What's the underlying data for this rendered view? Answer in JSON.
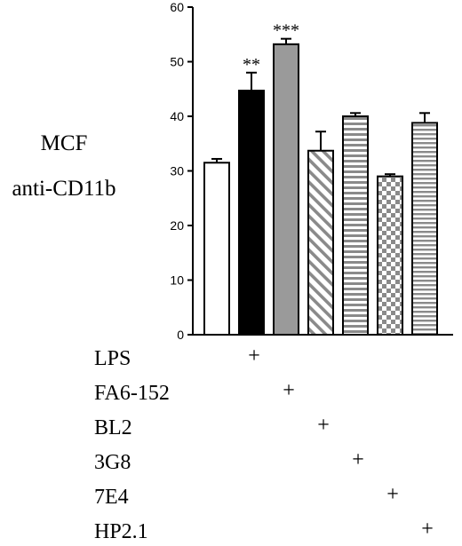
{
  "chart_data": {
    "type": "bar",
    "title": "",
    "ylabel_line1": "MCF",
    "ylabel_line2": "anti-CD11b",
    "xlabel": "",
    "ylim": [
      0,
      60
    ],
    "yticks": [
      0,
      10,
      20,
      30,
      40,
      50,
      60
    ],
    "grid": false,
    "bars": [
      {
        "value": 31.5,
        "error": 0.7,
        "pattern": "open",
        "sig": ""
      },
      {
        "value": 44.7,
        "error": 3.3,
        "pattern": "solid-black",
        "sig": "**"
      },
      {
        "value": 53.2,
        "error": 1.0,
        "pattern": "solid-gray",
        "sig": "***"
      },
      {
        "value": 33.7,
        "error": 3.5,
        "pattern": "diagonal-stripes",
        "sig": ""
      },
      {
        "value": 40.0,
        "error": 0.6,
        "pattern": "horizontal-stripes",
        "sig": ""
      },
      {
        "value": 29.0,
        "error": 0.4,
        "pattern": "checkerboard",
        "sig": ""
      },
      {
        "value": 38.8,
        "error": 1.8,
        "pattern": "horizontal-stripes-fine",
        "sig": ""
      }
    ],
    "treatments": [
      {
        "label": "LPS",
        "bar": 1,
        "mark": "+"
      },
      {
        "label": "FA6-152",
        "bar": 2,
        "mark": "+"
      },
      {
        "label": "BL2",
        "bar": 3,
        "mark": "+"
      },
      {
        "label": "3G8",
        "bar": 4,
        "mark": "+"
      },
      {
        "label": "7E4",
        "bar": 5,
        "mark": "+"
      },
      {
        "label": "HP2.1",
        "bar": 6,
        "mark": "+"
      }
    ],
    "colors": {
      "black": "#000000",
      "gray": "#9a9a9a",
      "stripe": "#8a8a8a",
      "white": "#ffffff"
    }
  }
}
